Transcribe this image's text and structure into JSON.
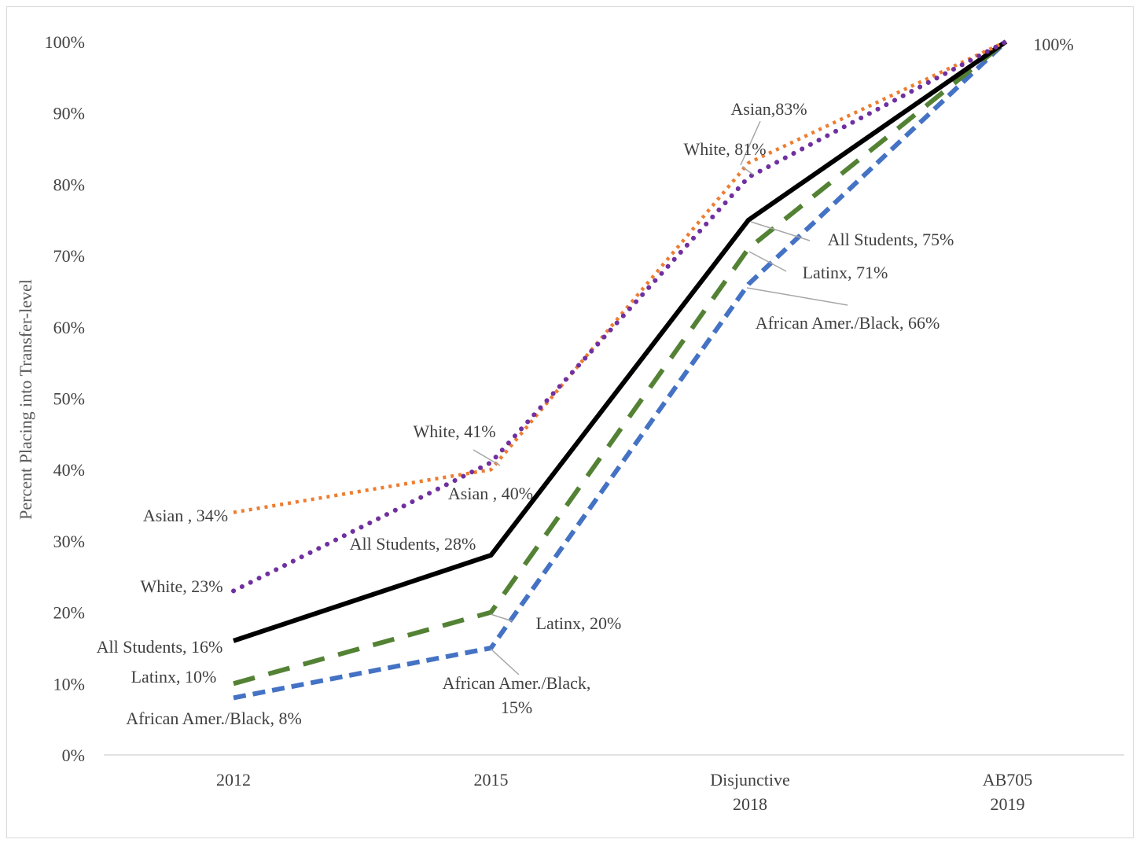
{
  "chart_data": {
    "type": "line",
    "title": "",
    "xlabel": "",
    "ylabel": "Percent Placing into Transfer-level",
    "ylim": [
      0,
      100
    ],
    "y_ticks": [
      "0%",
      "10%",
      "20%",
      "30%",
      "40%",
      "50%",
      "60%",
      "70%",
      "80%",
      "90%",
      "100%"
    ],
    "categories": [
      [
        "2012"
      ],
      [
        "2015"
      ],
      [
        "Disjunctive",
        "2018"
      ],
      [
        "AB705",
        "2019"
      ]
    ],
    "grid": false,
    "legend": "none",
    "series": [
      {
        "name": "Asian",
        "values": [
          34,
          40,
          83,
          100
        ],
        "color": "#ED7D31",
        "style": "dotted",
        "labels": [
          "Asian , 34%",
          "Asian , 40%",
          "Asian,83%",
          ""
        ]
      },
      {
        "name": "White",
        "values": [
          23,
          41,
          81,
          100
        ],
        "color": "#7030A0",
        "style": "dotted-round",
        "labels": [
          "White, 23%",
          "White, 41%",
          "White, 81%",
          ""
        ]
      },
      {
        "name": "All Students",
        "values": [
          16,
          28,
          75,
          100
        ],
        "color": "#000000",
        "style": "solid",
        "labels": [
          "All Students, 16%",
          "All Students, 28%",
          "All Students, 75%",
          "100%"
        ]
      },
      {
        "name": "Latinx",
        "values": [
          10,
          20,
          71,
          100
        ],
        "color": "#548235",
        "style": "long-dash",
        "labels": [
          "Latinx, 10%",
          "Latinx, 20%",
          "Latinx, 71%",
          ""
        ]
      },
      {
        "name": "African Amer./Black",
        "values": [
          8,
          15,
          66,
          100
        ],
        "color": "#4472C4",
        "style": "dash",
        "labels": [
          "African Amer./Black, 8%",
          "African Amer./Black, 15%",
          "African Amer./Black, 66%",
          ""
        ]
      }
    ]
  }
}
